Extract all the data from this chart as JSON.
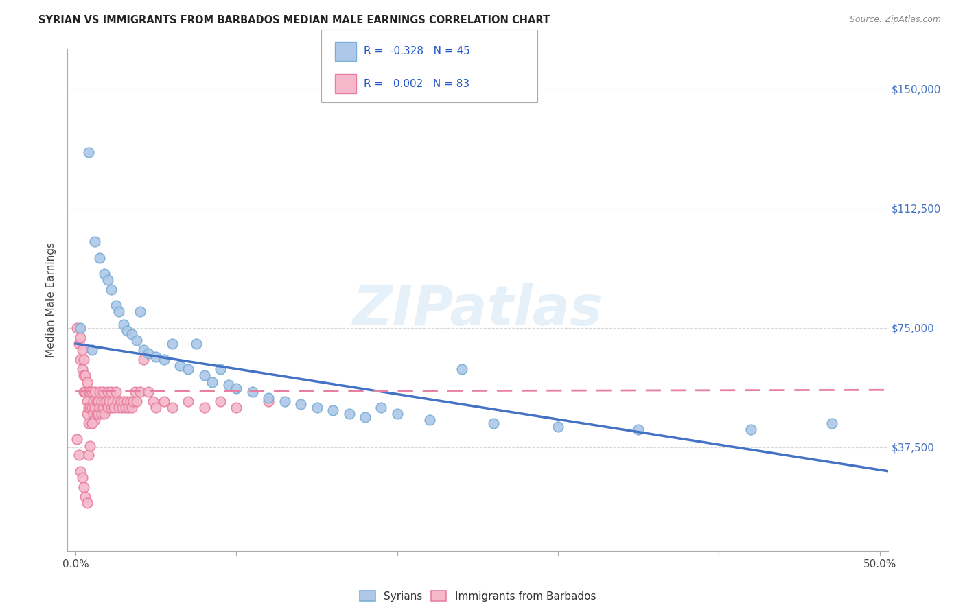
{
  "title": "SYRIAN VS IMMIGRANTS FROM BARBADOS MEDIAN MALE EARNINGS CORRELATION CHART",
  "source": "Source: ZipAtlas.com",
  "ylabel": "Median Male Earnings",
  "ytick_labels": [
    "$37,500",
    "$75,000",
    "$112,500",
    "$150,000"
  ],
  "ytick_vals": [
    37500,
    75000,
    112500,
    150000
  ],
  "ylim": [
    5000,
    162500
  ],
  "xlim": [
    -0.005,
    0.505
  ],
  "watermark": "ZIPatlas",
  "legend1_R": "-0.328",
  "legend1_N": "45",
  "legend2_R": "0.002",
  "legend2_N": "83",
  "syrian_color": "#adc8e8",
  "barbados_color": "#f5b8ca",
  "syrian_edge": "#7aafd4",
  "barbados_edge": "#e87fa0",
  "syrian_line_color": "#4472c4",
  "barbados_line_color": "#e87fa0",
  "sy_line_x0": 0.0,
  "sy_line_y0": 70000,
  "sy_line_x1": 0.505,
  "sy_line_y1": 30000,
  "bar_line_x0": 0.0,
  "bar_line_y0": 55000,
  "bar_line_x1": 0.505,
  "bar_line_y1": 55500,
  "syrians_x": [
    0.003,
    0.008,
    0.012,
    0.015,
    0.018,
    0.02,
    0.022,
    0.025,
    0.027,
    0.03,
    0.032,
    0.035,
    0.038,
    0.04,
    0.042,
    0.045,
    0.05,
    0.055,
    0.06,
    0.065,
    0.07,
    0.075,
    0.08,
    0.085,
    0.09,
    0.095,
    0.1,
    0.11,
    0.12,
    0.13,
    0.14,
    0.15,
    0.16,
    0.17,
    0.18,
    0.19,
    0.2,
    0.22,
    0.24,
    0.26,
    0.3,
    0.35,
    0.42,
    0.47,
    0.01
  ],
  "syrians_y": [
    75000,
    130000,
    102000,
    97000,
    92000,
    90000,
    87000,
    82000,
    80000,
    76000,
    74000,
    73000,
    71000,
    80000,
    68000,
    67000,
    66000,
    65000,
    70000,
    63000,
    62000,
    70000,
    60000,
    58000,
    62000,
    57000,
    56000,
    55000,
    53000,
    52000,
    51000,
    50000,
    49000,
    48000,
    47000,
    50000,
    48000,
    46000,
    62000,
    45000,
    44000,
    43000,
    43000,
    45000,
    68000
  ],
  "barbados_x": [
    0.001,
    0.002,
    0.003,
    0.003,
    0.004,
    0.004,
    0.005,
    0.005,
    0.005,
    0.006,
    0.006,
    0.007,
    0.007,
    0.007,
    0.008,
    0.008,
    0.008,
    0.009,
    0.009,
    0.01,
    0.01,
    0.01,
    0.011,
    0.011,
    0.012,
    0.012,
    0.012,
    0.013,
    0.013,
    0.014,
    0.014,
    0.015,
    0.015,
    0.016,
    0.016,
    0.017,
    0.017,
    0.018,
    0.018,
    0.019,
    0.02,
    0.02,
    0.021,
    0.022,
    0.022,
    0.023,
    0.024,
    0.025,
    0.026,
    0.027,
    0.028,
    0.029,
    0.03,
    0.031,
    0.032,
    0.033,
    0.034,
    0.035,
    0.036,
    0.037,
    0.038,
    0.04,
    0.042,
    0.045,
    0.048,
    0.05,
    0.055,
    0.06,
    0.07,
    0.08,
    0.09,
    0.1,
    0.12,
    0.001,
    0.002,
    0.003,
    0.004,
    0.005,
    0.006,
    0.007,
    0.008,
    0.009,
    0.01
  ],
  "barbados_y": [
    75000,
    70000,
    72000,
    65000,
    68000,
    62000,
    65000,
    60000,
    55000,
    60000,
    55000,
    58000,
    52000,
    48000,
    55000,
    50000,
    45000,
    55000,
    50000,
    55000,
    50000,
    45000,
    52000,
    48000,
    55000,
    50000,
    46000,
    52000,
    48000,
    52000,
    48000,
    55000,
    50000,
    52000,
    48000,
    55000,
    50000,
    52000,
    48000,
    52000,
    55000,
    50000,
    52000,
    55000,
    50000,
    52000,
    50000,
    55000,
    52000,
    50000,
    52000,
    50000,
    52000,
    50000,
    52000,
    50000,
    52000,
    50000,
    52000,
    55000,
    52000,
    55000,
    65000,
    55000,
    52000,
    50000,
    52000,
    50000,
    52000,
    50000,
    52000,
    50000,
    52000,
    40000,
    35000,
    30000,
    28000,
    25000,
    22000,
    20000,
    35000,
    38000,
    45000
  ]
}
